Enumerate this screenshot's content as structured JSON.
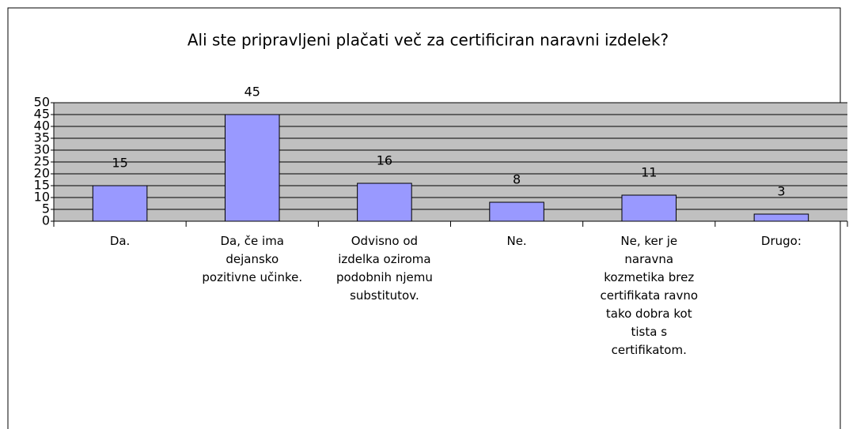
{
  "chart_data": {
    "type": "bar",
    "title": "Ali ste pripravljeni plačati več za certificiran naravni izdelek?",
    "categories": [
      "Da.",
      "Da, če ima dejansko pozitivne učinke.",
      "Odvisno od izdelka oziroma podobnih njemu substitutov.",
      "Ne.",
      "Ne, ker je naravna kozmetika brez certifikata ravno tako dobra kot tista s certifikatom.",
      "Drugo:"
    ],
    "values": [
      15,
      45,
      16,
      8,
      11,
      3
    ],
    "color": "#9999ff",
    "ylim": [
      0,
      50
    ],
    "yticks": [
      0,
      5,
      10,
      15,
      20,
      25,
      30,
      35,
      40,
      45,
      50
    ],
    "grid": true
  }
}
